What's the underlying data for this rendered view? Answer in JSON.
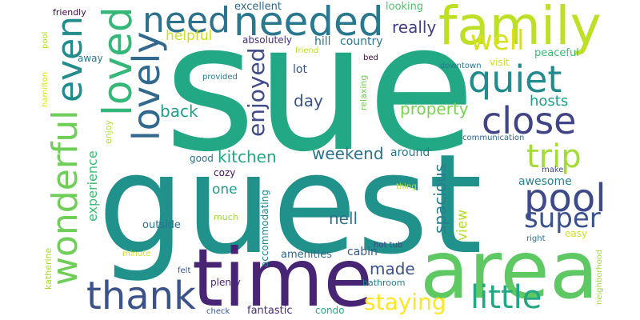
{
  "words": [
    {
      "text": "sue",
      "color": "#22a884",
      "vertical": false
    },
    {
      "text": "guest",
      "color": "#21918c",
      "vertical": false
    },
    {
      "text": "time",
      "color": "#482475",
      "vertical": false
    },
    {
      "text": "area",
      "color": "#5ec962",
      "vertical": false
    },
    {
      "text": "family",
      "color": "#bddf26",
      "vertical": false
    },
    {
      "text": "needed",
      "color": "#2a788e",
      "vertical": false
    },
    {
      "text": "need",
      "color": "#2c728e",
      "vertical": false
    },
    {
      "text": "loved",
      "color": "#35b779",
      "vertical": true
    },
    {
      "text": "lovely",
      "color": "#31688e",
      "vertical": true
    },
    {
      "text": "even",
      "color": "#228c8d",
      "vertical": true
    },
    {
      "text": "wonderful",
      "color": "#6ece58",
      "vertical": true
    },
    {
      "text": "thank",
      "color": "#3b528b",
      "vertical": false
    },
    {
      "text": "quiet",
      "color": "#238a8d",
      "vertical": false
    },
    {
      "text": "close",
      "color": "#414487",
      "vertical": false
    },
    {
      "text": "well",
      "color": "#d8e219",
      "vertical": false
    },
    {
      "text": "pool",
      "color": "#3e4a89",
      "vertical": false
    },
    {
      "text": "super",
      "color": "#3b528b",
      "vertical": false
    },
    {
      "text": "trip",
      "color": "#a5db36",
      "vertical": false
    },
    {
      "text": "little",
      "color": "#22a884",
      "vertical": false
    },
    {
      "text": "staying",
      "color": "#fde725",
      "vertical": false
    },
    {
      "text": "enjoyed",
      "color": "#3e4a89",
      "vertical": true
    },
    {
      "text": "kitchen",
      "color": "#22a884",
      "vertical": false
    },
    {
      "text": "weekend",
      "color": "#2c728e",
      "vertical": false
    },
    {
      "text": "really",
      "color": "#433e85",
      "vertical": false
    },
    {
      "text": "helpful",
      "color": "#c8e020",
      "vertical": false
    },
    {
      "text": "back",
      "color": "#1f9e89",
      "vertical": false
    },
    {
      "text": "day",
      "color": "#3b528b",
      "vertical": false
    },
    {
      "text": "property",
      "color": "#7ad151",
      "vertical": false
    },
    {
      "text": "hosts",
      "color": "#1f9e89",
      "vertical": false
    },
    {
      "text": "spacious",
      "color": "#287d8e",
      "vertical": true
    },
    {
      "text": "experience",
      "color": "#3dbc74",
      "vertical": true
    },
    {
      "text": "one",
      "color": "#1f9e89",
      "vertical": false
    },
    {
      "text": "nell",
      "color": "#2c728e",
      "vertical": false
    },
    {
      "text": "made",
      "color": "#3b528b",
      "vertical": false
    },
    {
      "text": "view",
      "color": "#b5de2b",
      "vertical": true
    },
    {
      "text": "awesome",
      "color": "#26828e",
      "vertical": false
    },
    {
      "text": "around",
      "color": "#2a788e",
      "vertical": false
    },
    {
      "text": "lot",
      "color": "#3b528b",
      "vertical": false
    },
    {
      "text": "country",
      "color": "#2a788e",
      "vertical": false
    },
    {
      "text": "hill",
      "color": "#2a788e",
      "vertical": false
    },
    {
      "text": "excellent",
      "color": "#31688e",
      "vertical": false
    },
    {
      "text": "looking",
      "color": "#50c46a",
      "vertical": false
    },
    {
      "text": "absolutely",
      "color": "#472f7d",
      "vertical": false
    },
    {
      "text": "friendly",
      "color": "#440154",
      "vertical": false
    },
    {
      "text": "pool",
      "color": "#b5de2b",
      "vertical": true
    },
    {
      "text": "hamilton",
      "color": "#d8e219",
      "vertical": true
    },
    {
      "text": "away",
      "color": "#2a788e",
      "vertical": false
    },
    {
      "text": "enjoy",
      "color": "#b5de2b",
      "vertical": true
    },
    {
      "text": "good",
      "color": "#2c728e",
      "vertical": false
    },
    {
      "text": "cozy",
      "color": "#471365",
      "vertical": false
    },
    {
      "text": "outside",
      "color": "#2d708e",
      "vertical": false
    },
    {
      "text": "much",
      "color": "#9fda3a",
      "vertical": false
    },
    {
      "text": "accommodating",
      "color": "#25848e",
      "vertical": true
    },
    {
      "text": "amenities",
      "color": "#30698e",
      "vertical": false
    },
    {
      "text": "cabin",
      "color": "#38588c",
      "vertical": false
    },
    {
      "text": "hot tub",
      "color": "#404688",
      "vertical": false
    },
    {
      "text": "bathroom",
      "color": "#287d8e",
      "vertical": false
    },
    {
      "text": "plenty",
      "color": "#482475",
      "vertical": false
    },
    {
      "text": "fantastic",
      "color": "#472d7b",
      "vertical": false
    },
    {
      "text": "condo",
      "color": "#27ad81",
      "vertical": false
    },
    {
      "text": "check",
      "color": "#39568c",
      "vertical": false
    },
    {
      "text": "felt",
      "color": "#3b528b",
      "vertical": false
    },
    {
      "text": "minute",
      "color": "#cde11d",
      "vertical": false
    },
    {
      "text": "katherine",
      "color": "#a5db36",
      "vertical": true
    },
    {
      "text": "friend",
      "color": "#bddf26",
      "vertical": false
    },
    {
      "text": "bed",
      "color": "#440154",
      "vertical": false
    },
    {
      "text": "downtown",
      "color": "#2a788e",
      "vertical": false
    },
    {
      "text": "provided",
      "color": "#287d8e",
      "vertical": false
    },
    {
      "text": "relaxing",
      "color": "#73d056",
      "vertical": true
    },
    {
      "text": "visit",
      "color": "#d2e21b",
      "vertical": false
    },
    {
      "text": "peaceful",
      "color": "#3dbc74",
      "vertical": false
    },
    {
      "text": "communication",
      "color": "#31688e",
      "vertical": false
    },
    {
      "text": "make",
      "color": "#3f4788",
      "vertical": false
    },
    {
      "text": "thing",
      "color": "#c2df23",
      "vertical": false
    },
    {
      "text": "right",
      "color": "#2d708e",
      "vertical": false
    },
    {
      "text": "easy",
      "color": "#d2e21b",
      "vertical": false
    },
    {
      "text": "neighborhood",
      "color": "#a0da39",
      "vertical": true
    }
  ]
}
